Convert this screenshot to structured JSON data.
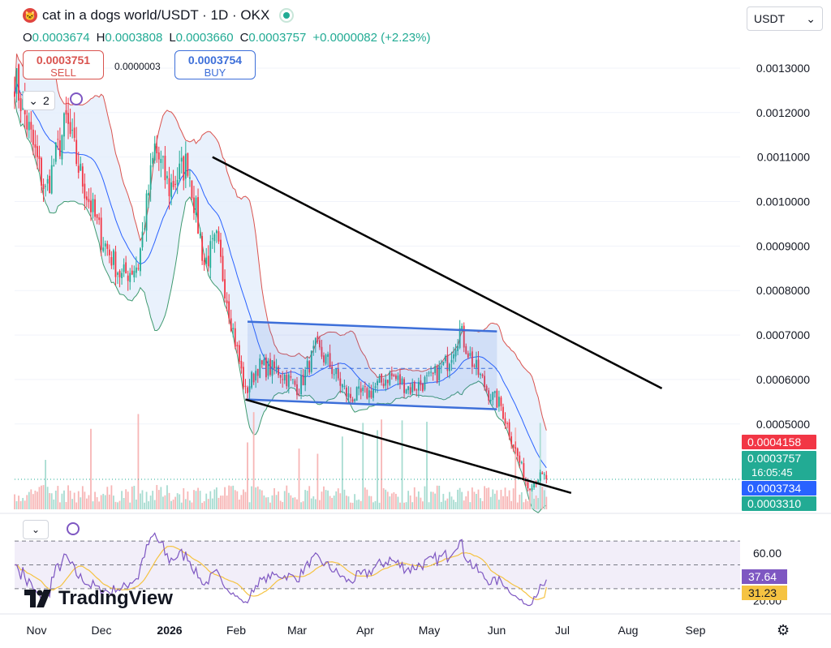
{
  "header": {
    "symbol": "cat in a dogs world/USDT · 1D · OKX",
    "coin_glyph": "🐱",
    "ohlc": {
      "o_label": "O",
      "o": "0.0003674",
      "h_label": "H",
      "h": "0.0003808",
      "l_label": "L",
      "l": "0.0003660",
      "c_label": "C",
      "c": "0.0003757",
      "change": "+0.0000082 (+2.23%)"
    }
  },
  "trade": {
    "sell_price": "0.0003751",
    "sell_label": "SELL",
    "spread": "0.0000003",
    "buy_price": "0.0003754",
    "buy_label": "BUY"
  },
  "indicators_collapse": {
    "count": "2",
    "chevron": "⌄"
  },
  "currency": {
    "value": "USDT",
    "chevron": "⌄"
  },
  "logo": "TradingView",
  "colors": {
    "up": "#22ab94",
    "down": "#f23645",
    "basis": "#2962ff",
    "upper_band": "#d9534f",
    "lower_band": "#3f9a70",
    "band_fill": "#e3eefb",
    "rsi": "#7e57c2",
    "rsi_ma": "#f5c342",
    "channel": "#3d6fd9"
  },
  "chart_data": [
    {
      "type": "candlestick",
      "y_axis_ticks": [
        "0.0013000",
        "0.0012000",
        "0.0011000",
        "0.0010000",
        "0.0009000",
        "0.0008000",
        "0.0007000",
        "0.0006000",
        "0.0005000"
      ],
      "ylim": [
        0.00031,
        0.00134
      ],
      "x_axis_labels": [
        "Nov",
        "Dec",
        "2026",
        "Feb",
        "Mar",
        "Apr",
        "May",
        "Jun",
        "Jul",
        "Aug",
        "Sep"
      ],
      "price_labels": [
        {
          "value": "0.0004158",
          "color": "#f23645"
        },
        {
          "value": "0.0003757",
          "sub": "16:05:45",
          "color": "#22ab94"
        },
        {
          "value": "0.0003734",
          "color": "#2962ff"
        },
        {
          "value": "0.0003310",
          "color": "#22ab94"
        }
      ],
      "close_anchors": [
        [
          0,
          0.00128
        ],
        [
          15,
          0.00102
        ],
        [
          25,
          0.00118
        ],
        [
          32,
          0.00106
        ],
        [
          42,
          0.00092
        ],
        [
          52,
          0.00083
        ],
        [
          60,
          0.00086
        ],
        [
          68,
          0.00112
        ],
        [
          75,
          0.00103
        ],
        [
          84,
          0.00109
        ],
        [
          92,
          0.00086
        ],
        [
          98,
          0.00091
        ],
        [
          106,
          0.00071
        ],
        [
          112,
          0.00057
        ],
        [
          118,
          0.00063
        ],
        [
          128,
          0.00062
        ],
        [
          138,
          0.00058
        ],
        [
          146,
          0.00067
        ],
        [
          152,
          0.00064
        ],
        [
          162,
          0.00056
        ],
        [
          172,
          0.00057
        ],
        [
          182,
          0.00061
        ],
        [
          192,
          0.00058
        ],
        [
          202,
          0.0006
        ],
        [
          210,
          0.00064
        ],
        [
          216,
          0.00071
        ],
        [
          222,
          0.00064
        ],
        [
          230,
          0.00057
        ],
        [
          236,
          0.00054
        ],
        [
          243,
          0.00044
        ],
        [
          249,
          0.00036
        ],
        [
          254,
          0.00038
        ],
        [
          258,
          0.00038
        ]
      ],
      "trendlines": [
        {
          "name": "upper-wedge-line",
          "x1": 96,
          "y1": 0.0011,
          "x2": 314,
          "y2": 0.00058
        },
        {
          "name": "lower-wedge-line",
          "x1": 112,
          "y1": 0.000555,
          "x2": 270,
          "y2": 0.000345
        }
      ],
      "channel": {
        "x1": 113,
        "x2": 234,
        "top_start": 0.00073,
        "top_end": 0.000708,
        "bottom_start": 0.000555,
        "bottom_end": 0.000533
      },
      "channel_midline": {
        "x1": 120,
        "x2": 234,
        "y": 0.000625
      }
    },
    {
      "type": "line",
      "name": "RSI",
      "y_axis_ticks": [
        "60.00",
        "20.00"
      ],
      "ylim": [
        15,
        85
      ],
      "levels": [
        70,
        50,
        30
      ],
      "value_labels": [
        {
          "value": "37.64",
          "color": "#7e57c2"
        },
        {
          "value": "31.23",
          "color": "#f5c342"
        }
      ]
    }
  ]
}
